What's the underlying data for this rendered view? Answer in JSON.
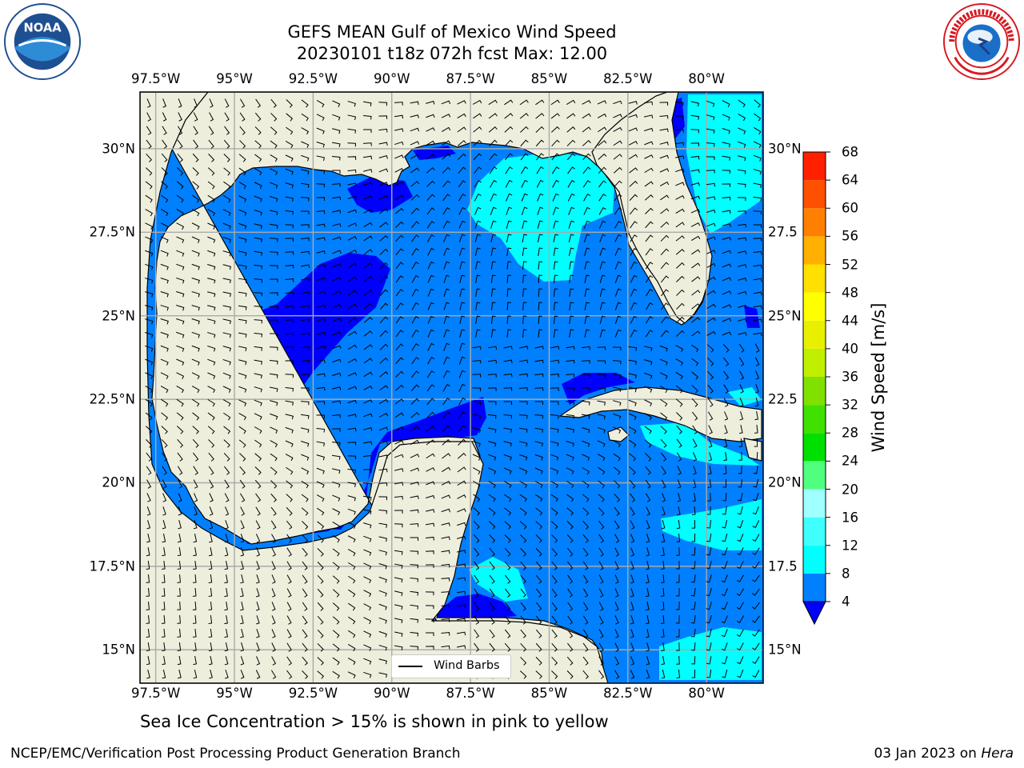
{
  "title": {
    "line1": "GEFS MEAN Gulf of Mexico Wind Speed",
    "line2": "20230101 t18z 072h fcst   Max: 12.00"
  },
  "map": {
    "lon_labels": [
      "97.5°W",
      "95°W",
      "92.5°W",
      "90°W",
      "87.5°W",
      "85°W",
      "82.5°W",
      "80°W"
    ],
    "lon_values": [
      -97.5,
      -95,
      -92.5,
      -90,
      -87.5,
      -85,
      -82.5,
      -80
    ],
    "lat_labels": [
      "30°N",
      "27.5°N",
      "25°N",
      "22.5°N",
      "20°N",
      "17.5°N",
      "15°N"
    ],
    "lat_values": [
      30,
      27.5,
      25,
      22.5,
      20,
      17.5,
      15
    ],
    "right_lat_labels": [
      "30°N",
      "27.5",
      "25°N",
      "22.5",
      "20°N",
      "17.5",
      "15°N"
    ],
    "extent": {
      "lon_min": -98,
      "lon_max": -78.2,
      "lat_min": 14,
      "lat_max": 31.7
    },
    "land_color": "#eeeedd",
    "legend_label": "Wind Barbs"
  },
  "colorbar": {
    "label": "Wind Speed [m/s]",
    "ticks": [
      "4",
      "8",
      "12",
      "16",
      "20",
      "24",
      "28",
      "32",
      "36",
      "40",
      "44",
      "48",
      "52",
      "56",
      "60",
      "64",
      "68"
    ],
    "colors": [
      "#0000ff",
      "#0080ff",
      "#00ffff",
      "#40ffff",
      "#a0ffff",
      "#50ff80",
      "#00e000",
      "#40e000",
      "#80e000",
      "#c0f000",
      "#e8f000",
      "#ffff00",
      "#ffe000",
      "#ffb000",
      "#ff8000",
      "#ff5000",
      "#ff2000",
      "#ff0000"
    ]
  },
  "caption": "Sea Ice Concentration > 15% is shown in pink to yellow",
  "footer": {
    "left": "NCEP/EMC/Verification Post Processing Product Generation Branch",
    "right_date": "03 Jan 2023 on ",
    "right_host": "Hera"
  }
}
